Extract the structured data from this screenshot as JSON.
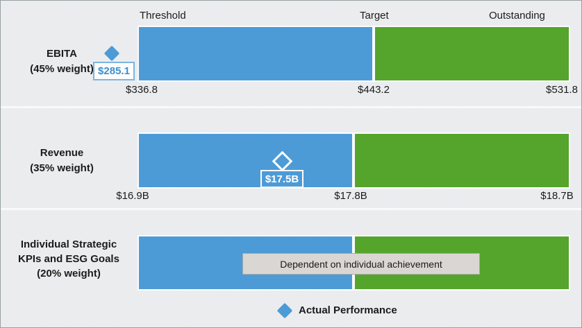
{
  "zones": {
    "threshold": "Threshold",
    "target": "Target",
    "outstanding": "Outstanding"
  },
  "rows": [
    {
      "label_lines": [
        "EBITA",
        "(45% weight)"
      ],
      "actual_label": "$285.1",
      "ticks": {
        "threshold": "$336.8",
        "target": "$443.2",
        "outstanding": "$531.8"
      }
    },
    {
      "label_lines": [
        "Revenue",
        "(35% weight)"
      ],
      "actual_label": "$17.5B",
      "ticks": {
        "threshold": "$16.9B",
        "target": "$17.8B",
        "outstanding": "$18.7B"
      }
    },
    {
      "label_lines": [
        "Individual Strategic",
        "KPIs and ESG Goals",
        "(20% weight)"
      ],
      "note": "Dependent on individual achievement"
    }
  ],
  "legend": {
    "label": "Actual Performance"
  },
  "colors": {
    "blue": "#4D9BD6",
    "green": "#55A42C",
    "background": "#EDF0F0",
    "note_bg": "#D9D6D3",
    "note_border": "#ACA9A6",
    "text": "#1B1B1B"
  },
  "chart_data": {
    "type": "bar",
    "subtype": "bullet-performance-bands",
    "zones": [
      "Threshold",
      "Target",
      "Outstanding"
    ],
    "legend": [
      "Actual Performance"
    ],
    "series": [
      {
        "name": "EBITA",
        "weight_pct": 45,
        "threshold": 336.8,
        "target": 443.2,
        "outstanding": 531.8,
        "actual": 285.1,
        "actual_vs_bands": "below threshold"
      },
      {
        "name": "Revenue",
        "weight_pct": 35,
        "unit": "B",
        "threshold": 16.9,
        "target": 17.8,
        "outstanding": 18.7,
        "actual": 17.5,
        "actual_vs_bands": "between threshold and target"
      },
      {
        "name": "Individual Strategic KPIs and ESG Goals",
        "weight_pct": 20,
        "actual": null,
        "note": "Dependent on individual achievement"
      }
    ],
    "layout": {
      "band_colors": {
        "threshold_to_target": "#4D9BD6",
        "target_to_outstanding": "#55A42C"
      },
      "grid": false,
      "legend_position": "bottom-center"
    }
  }
}
